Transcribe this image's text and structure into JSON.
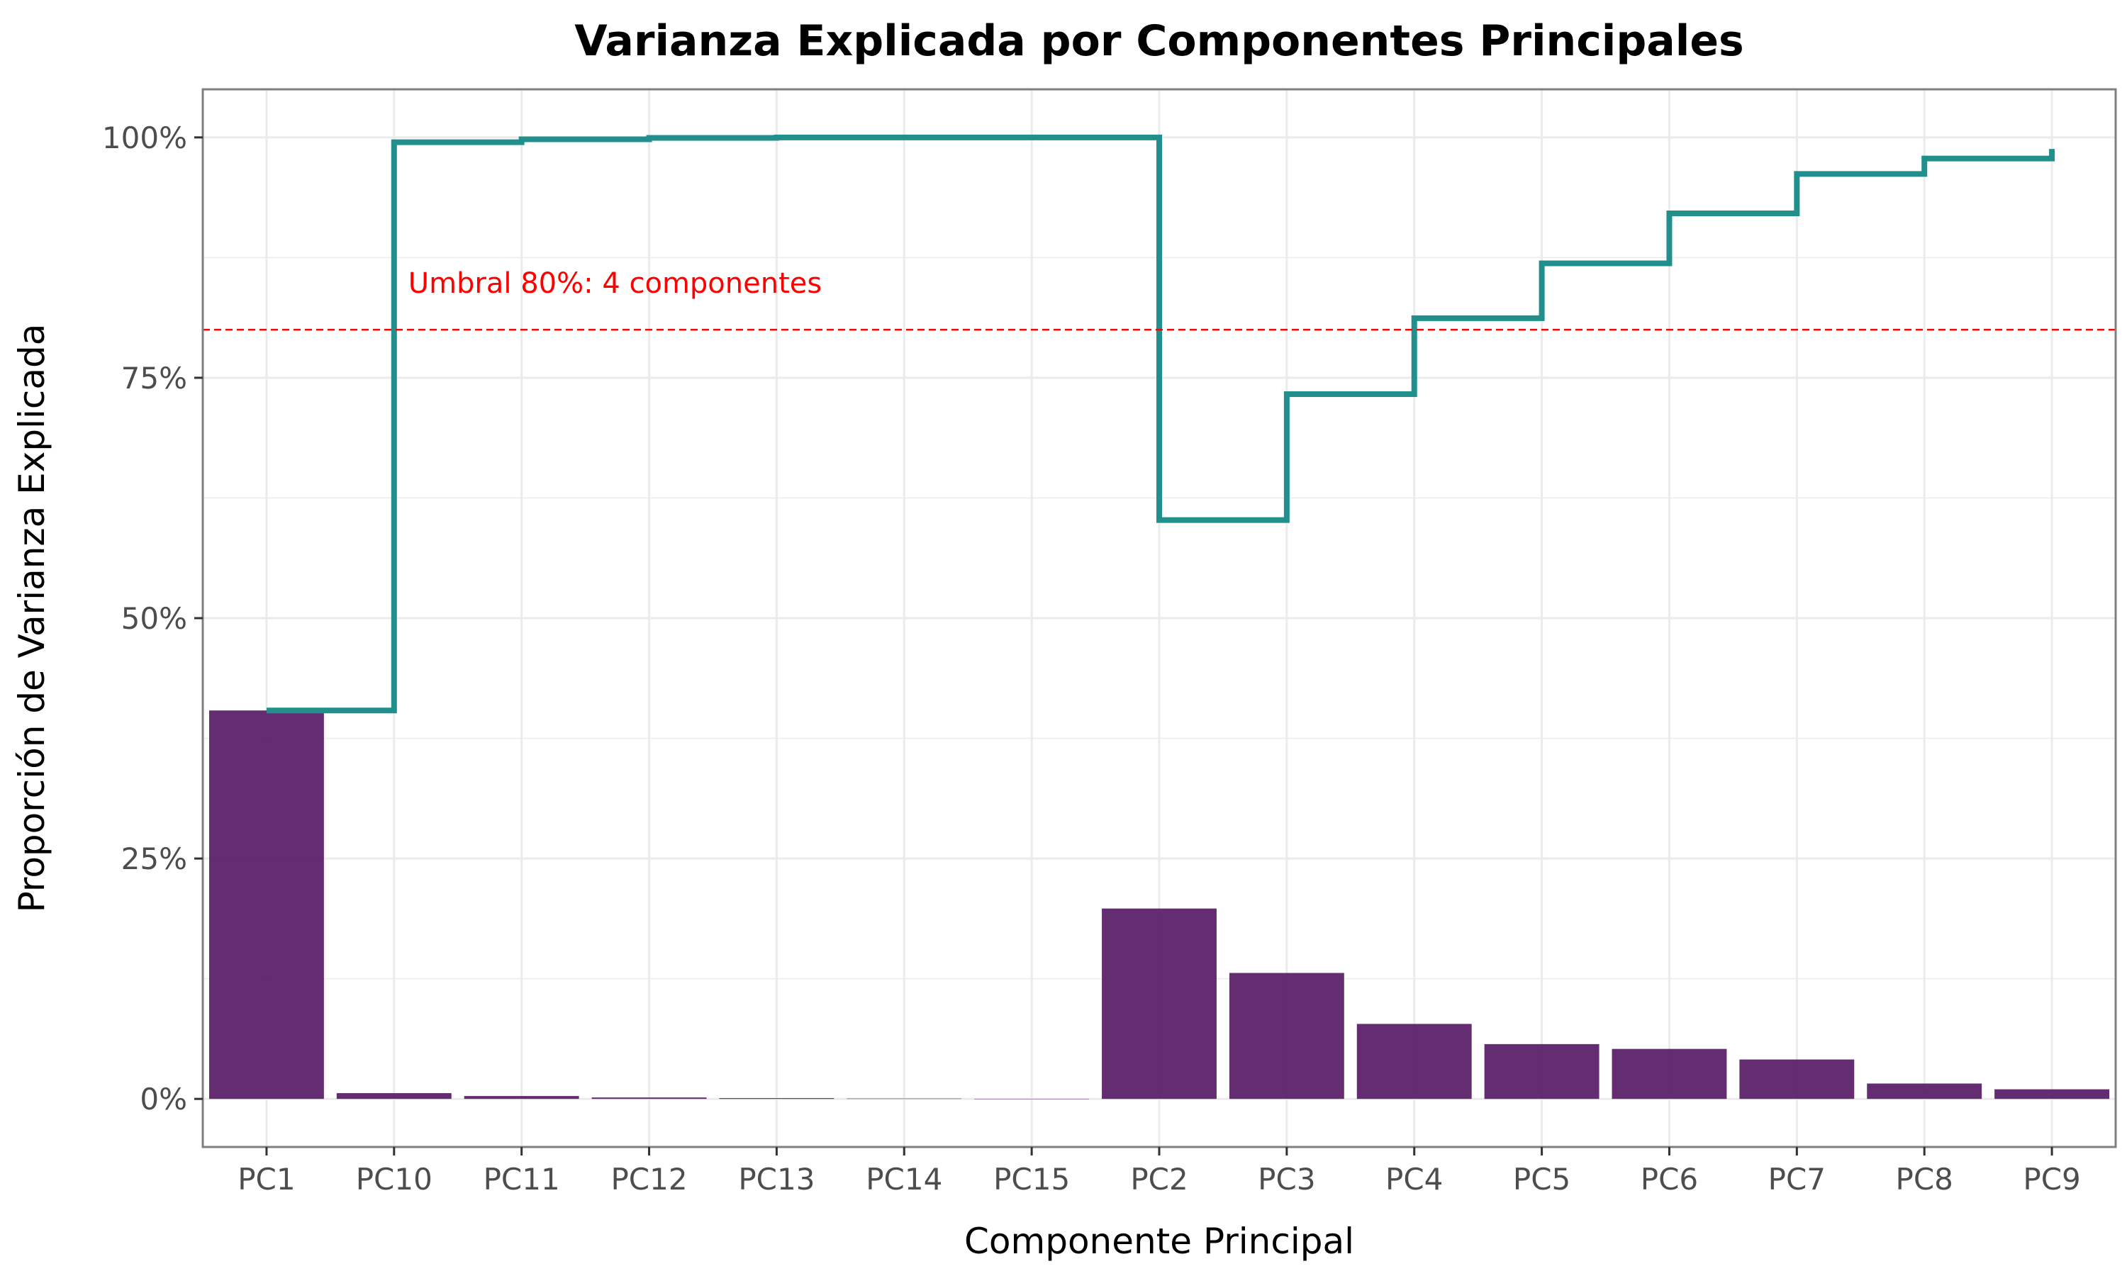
{
  "chart_data": {
    "type": "bar",
    "title": "Varianza Explicada por Componentes Principales",
    "xlabel": "Componente Principal",
    "ylabel": "Proporción de Varianza Explicada",
    "categories": [
      "PC1",
      "PC10",
      "PC11",
      "PC12",
      "PC13",
      "PC14",
      "PC15",
      "PC2",
      "PC3",
      "PC4",
      "PC5",
      "PC6",
      "PC7",
      "PC8",
      "PC9"
    ],
    "ylim": [
      -0.05,
      1.05
    ],
    "yticks": [
      0,
      0.25,
      0.5,
      0.75,
      1.0
    ],
    "ytick_labels": [
      "0%",
      "25%",
      "50%",
      "75%",
      "100%"
    ],
    "grid": true,
    "series": [
      {
        "kind": "bar",
        "values": [
          0.404,
          0.006,
          0.003,
          0.0015,
          0.0008,
          0.0004,
          0.0001,
          0.198,
          0.131,
          0.078,
          0.057,
          0.052,
          0.041,
          0.016,
          0.01
        ],
        "color": "#5b2068"
      },
      {
        "kind": "step",
        "values": [
          0.404,
          0.995,
          0.998,
          0.9995,
          1.0,
          1.0,
          1.0,
          0.602,
          0.733,
          0.812,
          0.869,
          0.921,
          0.962,
          0.978,
          0.988
        ],
        "color": "#21908c"
      }
    ],
    "threshold": {
      "value": 0.8,
      "color": "#ff0000",
      "label": "Umbral 80%: 4 componentes"
    }
  }
}
